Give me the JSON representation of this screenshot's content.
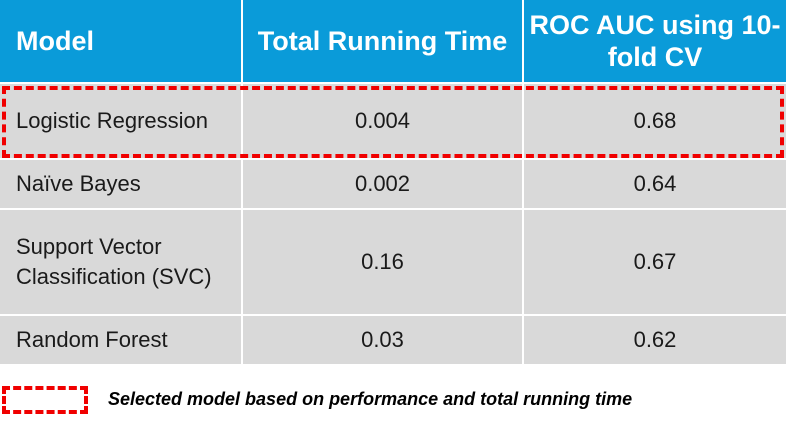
{
  "table": {
    "headers": [
      "Model",
      "Total Running Time",
      "ROC AUC using 10-fold CV"
    ],
    "rows": [
      {
        "model": "Logistic Regression",
        "running_time": "0.004",
        "roc_auc": "0.68",
        "selected": true
      },
      {
        "model": "Naïve Bayes",
        "running_time": "0.002",
        "roc_auc": "0.64",
        "selected": false
      },
      {
        "model": "Support Vector Classification (SVC)",
        "running_time": "0.16",
        "roc_auc": "0.67",
        "selected": false
      },
      {
        "model": "Random Forest",
        "running_time": "0.03",
        "roc_auc": "0.62",
        "selected": false
      }
    ]
  },
  "legend": {
    "text": "Selected model based on performance and total running time"
  },
  "colors": {
    "header_bg": "#0a9bd9",
    "row_bg": "#d9d9d9",
    "highlight": "#f00000"
  }
}
